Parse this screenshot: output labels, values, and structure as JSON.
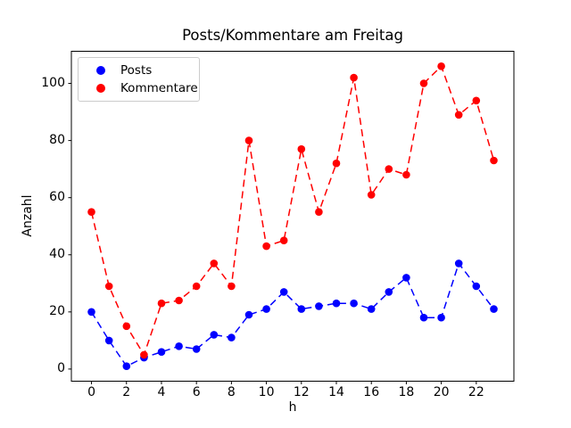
{
  "figure": {
    "background": "#ffffff",
    "plot_border_color": "#000000"
  },
  "chart_data": {
    "type": "line",
    "title": "Posts/Kommentare am Freitag",
    "xlabel": "h",
    "ylabel": "Anzahl",
    "x": [
      0,
      1,
      2,
      3,
      4,
      5,
      6,
      7,
      8,
      9,
      10,
      11,
      12,
      13,
      14,
      15,
      16,
      17,
      18,
      19,
      20,
      21,
      22,
      23
    ],
    "series": [
      {
        "name": "Posts",
        "color": "#0000ff",
        "line_style": "dashed",
        "marker": "circle",
        "values": [
          20,
          10,
          1,
          4,
          6,
          8,
          7,
          12,
          11,
          19,
          21,
          27,
          21,
          22,
          23,
          23,
          21,
          27,
          32,
          18,
          18,
          37,
          29,
          21
        ]
      },
      {
        "name": "Kommentare",
        "color": "#ff0000",
        "line_style": "dashed",
        "marker": "circle",
        "values": [
          55,
          29,
          15,
          5,
          23,
          24,
          29,
          37,
          29,
          80,
          43,
          45,
          77,
          55,
          72,
          102,
          61,
          70,
          68,
          100,
          106,
          89,
          94,
          73
        ]
      }
    ],
    "xticks": [
      0,
      2,
      4,
      6,
      8,
      10,
      12,
      14,
      16,
      18,
      20,
      22
    ],
    "yticks": [
      0,
      20,
      40,
      60,
      80,
      100
    ],
    "xlim": [
      -1.15,
      24.15
    ],
    "ylim": [
      -4.25,
      111.25
    ],
    "grid": false,
    "legend_position": "upper left"
  }
}
